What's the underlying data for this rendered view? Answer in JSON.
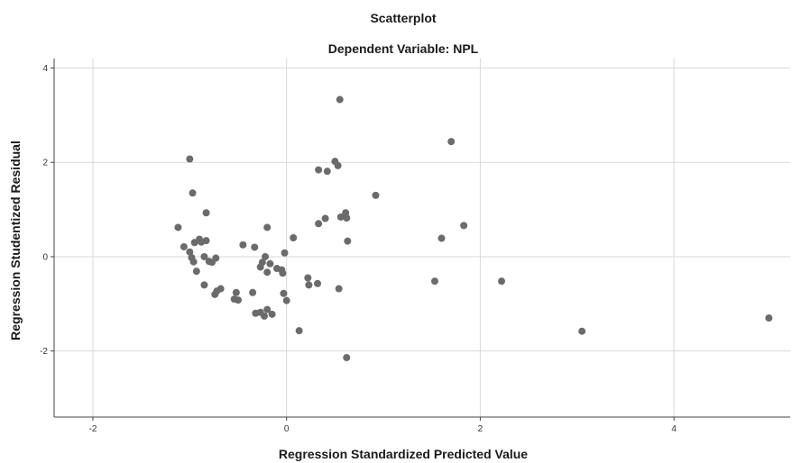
{
  "chart_data": {
    "type": "scatter",
    "title": "Scatterplot",
    "subtitle": "Dependent Variable: NPL",
    "xlabel": "Regression Standardized Predicted Value",
    "ylabel": "Regression Studentized Residual",
    "xlim": [
      -2.4,
      5.2
    ],
    "ylim": [
      -3.4,
      4.2
    ],
    "xticks": [
      -2,
      0,
      2,
      4
    ],
    "yticks": [
      -2,
      0,
      2,
      4
    ],
    "x_tick_labels": [
      "-2",
      "0",
      "2",
      "4"
    ],
    "y_tick_labels": [
      "-2",
      "0",
      "2",
      "4"
    ],
    "grid": true,
    "colors": {
      "point": "#6b6b6b",
      "grid": "#d9d9d9",
      "axis": "#444444"
    },
    "points": [
      {
        "x": 0.55,
        "y": 3.33
      },
      {
        "x": 1.7,
        "y": 2.44
      },
      {
        "x": -1.0,
        "y": 2.07
      },
      {
        "x": 0.5,
        "y": 2.02
      },
      {
        "x": 0.53,
        "y": 1.93
      },
      {
        "x": 0.33,
        "y": 1.84
      },
      {
        "x": 0.42,
        "y": 1.81
      },
      {
        "x": -0.97,
        "y": 1.35
      },
      {
        "x": 0.92,
        "y": 1.3
      },
      {
        "x": -0.83,
        "y": 0.93
      },
      {
        "x": 0.61,
        "y": 0.93
      },
      {
        "x": 0.4,
        "y": 0.81
      },
      {
        "x": 0.56,
        "y": 0.84
      },
      {
        "x": 0.62,
        "y": 0.82
      },
      {
        "x": 0.33,
        "y": 0.7
      },
      {
        "x": 1.83,
        "y": 0.66
      },
      {
        "x": -1.12,
        "y": 0.62
      },
      {
        "x": -0.2,
        "y": 0.62
      },
      {
        "x": 0.07,
        "y": 0.4
      },
      {
        "x": 1.6,
        "y": 0.39
      },
      {
        "x": 0.63,
        "y": 0.33
      },
      {
        "x": -0.9,
        "y": 0.37
      },
      {
        "x": -0.83,
        "y": 0.34
      },
      {
        "x": -0.95,
        "y": 0.3
      },
      {
        "x": -0.45,
        "y": 0.25
      },
      {
        "x": -0.33,
        "y": 0.2
      },
      {
        "x": -1.06,
        "y": 0.21
      },
      {
        "x": -1.0,
        "y": 0.1
      },
      {
        "x": -0.88,
        "y": 0.31
      },
      {
        "x": -0.02,
        "y": 0.08
      },
      {
        "x": -0.98,
        "y": -0.02
      },
      {
        "x": -0.22,
        "y": 0.0
      },
      {
        "x": -0.85,
        "y": 0.0
      },
      {
        "x": -0.73,
        "y": -0.03
      },
      {
        "x": -0.8,
        "y": -0.1
      },
      {
        "x": -0.77,
        "y": -0.12
      },
      {
        "x": -0.96,
        "y": -0.11
      },
      {
        "x": -0.25,
        "y": -0.12
      },
      {
        "x": -0.17,
        "y": -0.15
      },
      {
        "x": -0.27,
        "y": -0.22
      },
      {
        "x": -0.1,
        "y": -0.25
      },
      {
        "x": -0.05,
        "y": -0.28
      },
      {
        "x": -0.93,
        "y": -0.31
      },
      {
        "x": -0.2,
        "y": -0.33
      },
      {
        "x": -0.04,
        "y": -0.35
      },
      {
        "x": 0.22,
        "y": -0.45
      },
      {
        "x": 1.53,
        "y": -0.52
      },
      {
        "x": 2.22,
        "y": -0.52
      },
      {
        "x": -0.85,
        "y": -0.6
      },
      {
        "x": 0.23,
        "y": -0.6
      },
      {
        "x": 0.32,
        "y": -0.57
      },
      {
        "x": 0.54,
        "y": -0.68
      },
      {
        "x": -0.68,
        "y": -0.68
      },
      {
        "x": -0.72,
        "y": -0.73
      },
      {
        "x": -0.35,
        "y": -0.76
      },
      {
        "x": -0.52,
        "y": -0.76
      },
      {
        "x": -0.03,
        "y": -0.78
      },
      {
        "x": -0.74,
        "y": -0.8
      },
      {
        "x": -0.54,
        "y": -0.9
      },
      {
        "x": -0.5,
        "y": -0.92
      },
      {
        "x": 0.0,
        "y": -0.93
      },
      {
        "x": -0.2,
        "y": -1.12
      },
      {
        "x": -0.27,
        "y": -1.18
      },
      {
        "x": -0.32,
        "y": -1.2
      },
      {
        "x": -0.15,
        "y": -1.22
      },
      {
        "x": -0.23,
        "y": -1.26
      },
      {
        "x": 4.98,
        "y": -1.3
      },
      {
        "x": 0.13,
        "y": -1.57
      },
      {
        "x": 3.05,
        "y": -1.58
      },
      {
        "x": 0.62,
        "y": -2.14
      }
    ]
  }
}
